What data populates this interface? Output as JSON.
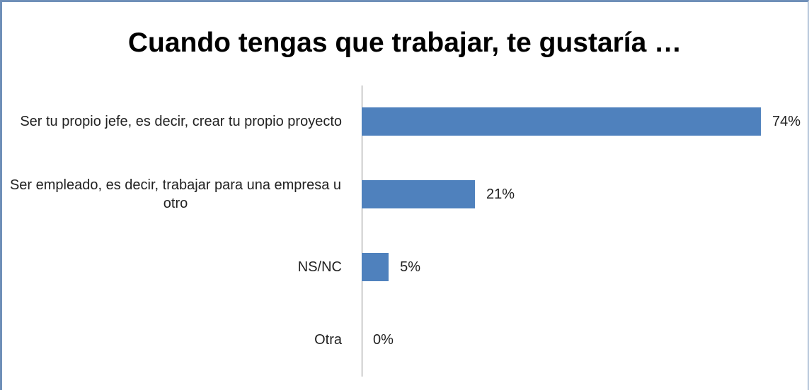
{
  "chart_data": {
    "type": "bar",
    "orientation": "horizontal",
    "title": "Cuando tengas que trabajar, te gustaría …",
    "categories": [
      "Ser tu propio jefe, es decir, crear tu propio proyecto",
      "Ser empleado, es decir, trabajar para una empresa u otro",
      "NS/NC",
      "Otra"
    ],
    "values": [
      74,
      21,
      5,
      0
    ],
    "value_labels": [
      "74%",
      "21%",
      "5%",
      "0%"
    ],
    "color": "#4f81bd"
  }
}
